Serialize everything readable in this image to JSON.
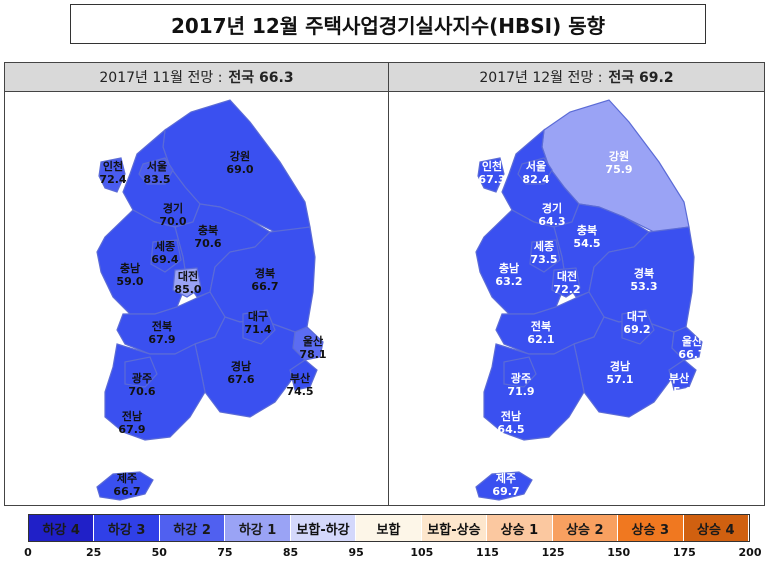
{
  "title": "2017년  12월  주택사업경기실사지수(HBSI) 동향",
  "panels": [
    {
      "header_prefix": "2017년 11월 전망 :",
      "header_national": "전국 66.3",
      "regions": {
        "incheon": {
          "name": "인천",
          "value": "72.4",
          "fill": "#4a5cf0"
        },
        "seoul": {
          "name": "서울",
          "value": "83.5",
          "fill": "#4a5cf0"
        },
        "gangwon": {
          "name": "강원",
          "value": "69.0",
          "fill": "#3a50f0"
        },
        "gyeonggi": {
          "name": "경기",
          "value": "70.0",
          "fill": "#3a50f0"
        },
        "chungbuk": {
          "name": "충북",
          "value": "70.6",
          "fill": "#3a50f0"
        },
        "sejong": {
          "name": "세종",
          "value": "69.4",
          "fill": "#3a50f0"
        },
        "chungnam": {
          "name": "충남",
          "value": "59.0",
          "fill": "#3a50f0"
        },
        "daejeon": {
          "name": "대전",
          "value": "85.0",
          "fill": "#9aa3f5"
        },
        "gyeongbuk": {
          "name": "경북",
          "value": "66.7",
          "fill": "#3a50f0"
        },
        "daegu": {
          "name": "대구",
          "value": "71.4",
          "fill": "#3a50f0"
        },
        "jeonbuk": {
          "name": "전북",
          "value": "67.9",
          "fill": "#3a50f0"
        },
        "ulsan": {
          "name": "울산",
          "value": "78.1",
          "fill": "#5b6cf2"
        },
        "gyeongnam": {
          "name": "경남",
          "value": "67.6",
          "fill": "#3a50f0"
        },
        "busan": {
          "name": "부산",
          "value": "74.5",
          "fill": "#3a50f0"
        },
        "gwangju": {
          "name": "광주",
          "value": "70.6",
          "fill": "#3a50f0"
        },
        "jeonnam": {
          "name": "전남",
          "value": "67.9",
          "fill": "#3a50f0"
        },
        "jeju": {
          "name": "제주",
          "value": "66.7",
          "fill": "#3a50f0"
        }
      }
    },
    {
      "header_prefix": "2017년 12월 전망 :",
      "header_national": "전국 69.2",
      "regions": {
        "incheon": {
          "name": "인천",
          "value": "67.3",
          "fill": "#3a50f0"
        },
        "seoul": {
          "name": "서울",
          "value": "82.4",
          "fill": "#3a50f0"
        },
        "gangwon": {
          "name": "강원",
          "value": "75.9",
          "fill": "#9aa3f5"
        },
        "gyeonggi": {
          "name": "경기",
          "value": "64.3",
          "fill": "#3a50f0"
        },
        "chungbuk": {
          "name": "충북",
          "value": "54.5",
          "fill": "#3a50f0"
        },
        "sejong": {
          "name": "세종",
          "value": "73.5",
          "fill": "#3a50f0"
        },
        "chungnam": {
          "name": "충남",
          "value": "63.2",
          "fill": "#3a50f0"
        },
        "daejeon": {
          "name": "대전",
          "value": "72.2",
          "fill": "#3a50f0"
        },
        "gyeongbuk": {
          "name": "경북",
          "value": "53.3",
          "fill": "#3a50f0"
        },
        "daegu": {
          "name": "대구",
          "value": "69.2",
          "fill": "#3a50f0"
        },
        "jeonbuk": {
          "name": "전북",
          "value": "62.1",
          "fill": "#3a50f0"
        },
        "ulsan": {
          "name": "울산",
          "value": "66.7",
          "fill": "#3a50f0"
        },
        "gyeongnam": {
          "name": "경남",
          "value": "57.1",
          "fill": "#3a50f0"
        },
        "busan": {
          "name": "부산",
          "value": "65.0",
          "fill": "#3a50f0"
        },
        "gwangju": {
          "name": "광주",
          "value": "71.9",
          "fill": "#3a50f0"
        },
        "jeonnam": {
          "name": "전남",
          "value": "64.5",
          "fill": "#3a50f0"
        },
        "jeju": {
          "name": "제주",
          "value": "69.7",
          "fill": "#3a50f0"
        }
      }
    }
  ],
  "legend": {
    "items": [
      {
        "label": "하강 4",
        "color": "#2020c8"
      },
      {
        "label": "하강 3",
        "color": "#3040e8"
      },
      {
        "label": "하강 2",
        "color": "#5060f0"
      },
      {
        "label": "하강 1",
        "color": "#9aa3f5"
      },
      {
        "label": "보합-하강",
        "color": "#d4d8fb"
      },
      {
        "label": "보합",
        "color": "#fdf6e8"
      },
      {
        "label": "보합-상승",
        "color": "#fde6cc"
      },
      {
        "label": "상승 1",
        "color": "#fbc8a0"
      },
      {
        "label": "상승 2",
        "color": "#f8a060"
      },
      {
        "label": "상승 3",
        "color": "#f07820"
      },
      {
        "label": "상승 4",
        "color": "#d06010"
      }
    ],
    "ticks": [
      "0",
      "25",
      "50",
      "75",
      "85",
      "95",
      "105",
      "115",
      "125",
      "150",
      "175",
      "200"
    ]
  }
}
